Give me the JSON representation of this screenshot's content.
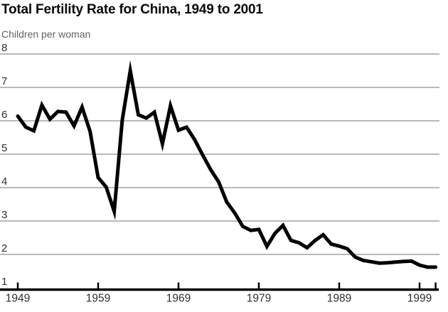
{
  "header": {
    "title": "Total Fertility Rate for China, 1949 to 2001",
    "subtitle": "Children per woman"
  },
  "chart_data": {
    "type": "line",
    "title": "Total Fertility Rate for China, 1949 to 2001",
    "ylabel": "Children per woman",
    "xlabel": "",
    "legend": "none",
    "grid": "horizontal",
    "ylim": [
      1,
      8
    ],
    "yticks": [
      1,
      2,
      3,
      4,
      5,
      6,
      7,
      8
    ],
    "xticks": [
      1949,
      1959,
      1969,
      1979,
      1989,
      1999,
      2001
    ],
    "xtick_labels": [
      "1949",
      "1959",
      "1969",
      "1979",
      "1989",
      "1999",
      ""
    ],
    "series_name": "Total fertility rate (children per woman)",
    "x": [
      1949,
      1950,
      1951,
      1952,
      1953,
      1954,
      1955,
      1956,
      1957,
      1958,
      1959,
      1960,
      1961,
      1962,
      1963,
      1964,
      1965,
      1966,
      1967,
      1968,
      1969,
      1970,
      1971,
      1972,
      1973,
      1974,
      1975,
      1976,
      1977,
      1978,
      1979,
      1980,
      1981,
      1982,
      1983,
      1984,
      1985,
      1986,
      1987,
      1988,
      1989,
      1990,
      1991,
      1992,
      1993,
      1994,
      1995,
      1996,
      1997,
      1998,
      1999,
      2000,
      2001
    ],
    "values": [
      6.14,
      5.81,
      5.7,
      6.47,
      6.05,
      6.28,
      6.26,
      5.85,
      6.41,
      5.68,
      4.3,
      4.02,
      3.29,
      6.02,
      7.5,
      6.18,
      6.08,
      6.26,
      5.31,
      6.45,
      5.72,
      5.81,
      5.44,
      4.98,
      4.54,
      4.17,
      3.57,
      3.24,
      2.84,
      2.72,
      2.75,
      2.24,
      2.63,
      2.87,
      2.42,
      2.35,
      2.2,
      2.42,
      2.59,
      2.31,
      2.25,
      2.17,
      1.92,
      1.82,
      1.78,
      1.74,
      1.75,
      1.77,
      1.79,
      1.8,
      1.68,
      1.62,
      1.62
    ],
    "colors": {
      "line": "#000000",
      "grid": "#8f8f8f",
      "axis": "#000000",
      "title": "#0a0a0a",
      "subtitle": "#636363",
      "tick_label": "#2e2e2e"
    }
  }
}
